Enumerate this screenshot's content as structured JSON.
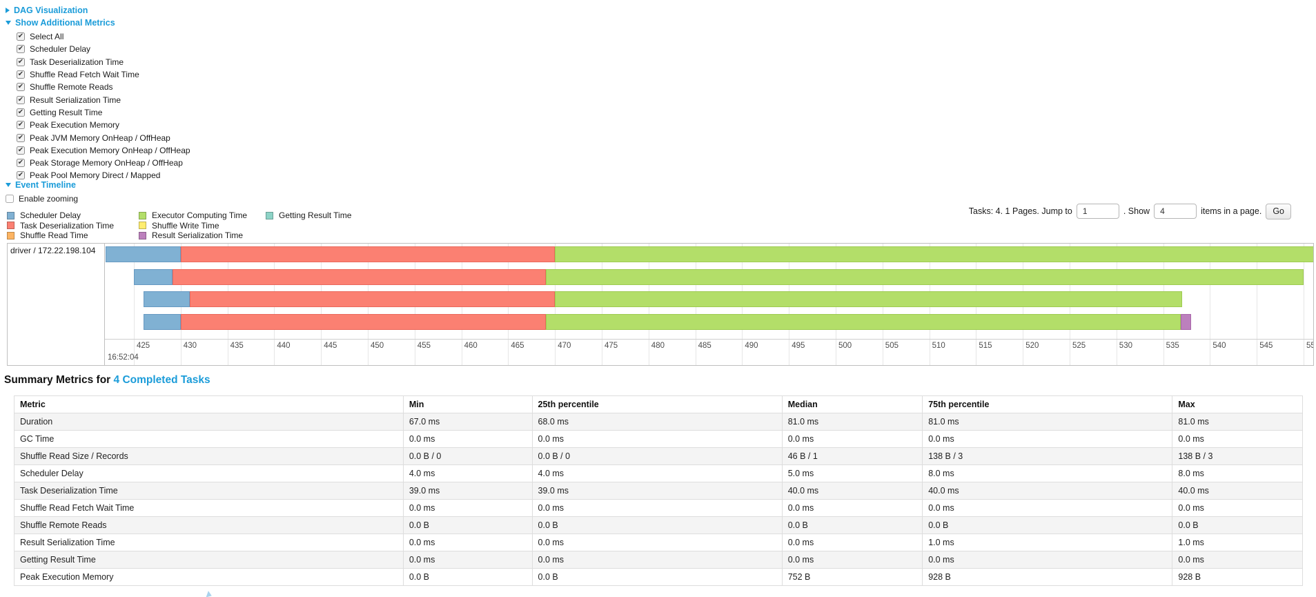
{
  "theme": {
    "link_color": "#1b9cd9"
  },
  "sections": {
    "dag": "DAG Visualization",
    "metrics": "Show Additional Metrics",
    "timeline": "Event Timeline",
    "enable_zooming": "Enable zooming"
  },
  "metric_checkboxes": [
    {
      "label": "Select All",
      "checked": true
    },
    {
      "label": "Scheduler Delay",
      "checked": true
    },
    {
      "label": "Task Deserialization Time",
      "checked": true
    },
    {
      "label": "Shuffle Read Fetch Wait Time",
      "checked": true
    },
    {
      "label": "Shuffle Remote Reads",
      "checked": true
    },
    {
      "label": "Result Serialization Time",
      "checked": true
    },
    {
      "label": "Getting Result Time",
      "checked": true
    },
    {
      "label": "Peak Execution Memory",
      "checked": true
    },
    {
      "label": "Peak JVM Memory OnHeap / OffHeap",
      "checked": true
    },
    {
      "label": "Peak Execution Memory OnHeap / OffHeap",
      "checked": true
    },
    {
      "label": "Peak Storage Memory OnHeap / OffHeap",
      "checked": true
    },
    {
      "label": "Peak Pool Memory Direct / Mapped",
      "checked": true
    }
  ],
  "legend_columns": [
    [
      {
        "label": "Scheduler Delay",
        "color": "#80B1D3"
      },
      {
        "label": "Task Deserialization Time",
        "color": "#FB8072"
      },
      {
        "label": "Shuffle Read Time",
        "color": "#FDB462"
      }
    ],
    [
      {
        "label": "Executor Computing Time",
        "color": "#B3DE69"
      },
      {
        "label": "Shuffle Write Time",
        "color": "#FFED6F"
      },
      {
        "label": "Result Serialization Time",
        "color": "#BC80BD"
      }
    ],
    [
      {
        "label": "Getting Result Time",
        "color": "#8DD3C7"
      }
    ]
  ],
  "pagination": {
    "tasks_text": "Tasks: 4. 1 Pages. Jump to",
    "jump_value": "1",
    "show_text": ". Show",
    "show_value": "4",
    "items_text": "items in a page.",
    "go_label": "Go"
  },
  "chart_data": {
    "type": "timeline",
    "row_label": "driver / 172.22.198.104",
    "x_axis": {
      "unit": "seconds",
      "tick_start": 425,
      "tick_interval": 5,
      "tick_count": 26,
      "date_label": "16:52:04"
    },
    "colors": {
      "scheduler_delay": {
        "fill": "#80B1D3",
        "border": "#6699c2"
      },
      "task_deserialization": {
        "fill": "#FB8072",
        "border": "#ea685c"
      },
      "executor_computing": {
        "fill": "#B3DE69",
        "border": "#9ecb52"
      },
      "result_serialization": {
        "fill": "#BC80BD",
        "border": "#a866aa"
      }
    },
    "tasks": [
      {
        "segments": [
          {
            "type": "scheduler_delay",
            "start": 422.0,
            "end": 430.0
          },
          {
            "type": "task_deserialization",
            "start": 430.0,
            "end": 470.0
          },
          {
            "type": "executor_computing",
            "start": 470.0,
            "end": 552.0
          }
        ]
      },
      {
        "segments": [
          {
            "type": "scheduler_delay",
            "start": 425.0,
            "end": 429.1
          },
          {
            "type": "task_deserialization",
            "start": 429.1,
            "end": 469.0
          },
          {
            "type": "executor_computing",
            "start": 469.0,
            "end": 550.0
          }
        ]
      },
      {
        "segments": [
          {
            "type": "scheduler_delay",
            "start": 426.0,
            "end": 431.0
          },
          {
            "type": "task_deserialization",
            "start": 431.0,
            "end": 470.0
          },
          {
            "type": "executor_computing",
            "start": 470.0,
            "end": 537.0
          }
        ]
      },
      {
        "segments": [
          {
            "type": "scheduler_delay",
            "start": 426.0,
            "end": 430.0
          },
          {
            "type": "task_deserialization",
            "start": 430.0,
            "end": 469.0
          },
          {
            "type": "executor_computing",
            "start": 469.0,
            "end": 536.9
          },
          {
            "type": "result_serialization",
            "start": 536.9,
            "end": 538.0
          }
        ]
      }
    ]
  },
  "summary": {
    "title_prefix": "Summary Metrics for",
    "title_link": "4 Completed Tasks",
    "table": {
      "headers": [
        "Metric",
        "Min",
        "25th percentile",
        "Median",
        "75th percentile",
        "Max"
      ],
      "col_widths_pct": [
        30.2,
        10.0,
        19.4,
        10.9,
        19.4,
        10.1
      ],
      "rows": [
        {
          "metric": "Duration",
          "values": [
            "67.0 ms",
            "68.0 ms",
            "81.0 ms",
            "81.0 ms",
            "81.0 ms"
          ]
        },
        {
          "metric": "GC Time",
          "values": [
            "0.0 ms",
            "0.0 ms",
            "0.0 ms",
            "0.0 ms",
            "0.0 ms"
          ]
        },
        {
          "metric": "Shuffle Read Size / Records",
          "values": [
            "0.0 B / 0",
            "0.0 B / 0",
            "46 B / 1",
            "138 B / 3",
            "138 B / 3"
          ]
        },
        {
          "metric": "Scheduler Delay",
          "values": [
            "4.0 ms",
            "4.0 ms",
            "5.0 ms",
            "8.0 ms",
            "8.0 ms"
          ]
        },
        {
          "metric": "Task Deserialization Time",
          "values": [
            "39.0 ms",
            "39.0 ms",
            "40.0 ms",
            "40.0 ms",
            "40.0 ms"
          ]
        },
        {
          "metric": "Shuffle Read Fetch Wait Time",
          "values": [
            "0.0 ms",
            "0.0 ms",
            "0.0 ms",
            "0.0 ms",
            "0.0 ms"
          ]
        },
        {
          "metric": "Shuffle Remote Reads",
          "values": [
            "0.0 B",
            "0.0 B",
            "0.0 B",
            "0.0 B",
            "0.0 B"
          ]
        },
        {
          "metric": "Result Serialization Time",
          "values": [
            "0.0 ms",
            "0.0 ms",
            "0.0 ms",
            "1.0 ms",
            "1.0 ms"
          ]
        },
        {
          "metric": "Getting Result Time",
          "values": [
            "0.0 ms",
            "0.0 ms",
            "0.0 ms",
            "0.0 ms",
            "0.0 ms"
          ]
        },
        {
          "metric": "Peak Execution Memory",
          "values": [
            "0.0 B",
            "0.0 B",
            "752 B",
            "928 B",
            "928 B"
          ]
        }
      ]
    }
  }
}
